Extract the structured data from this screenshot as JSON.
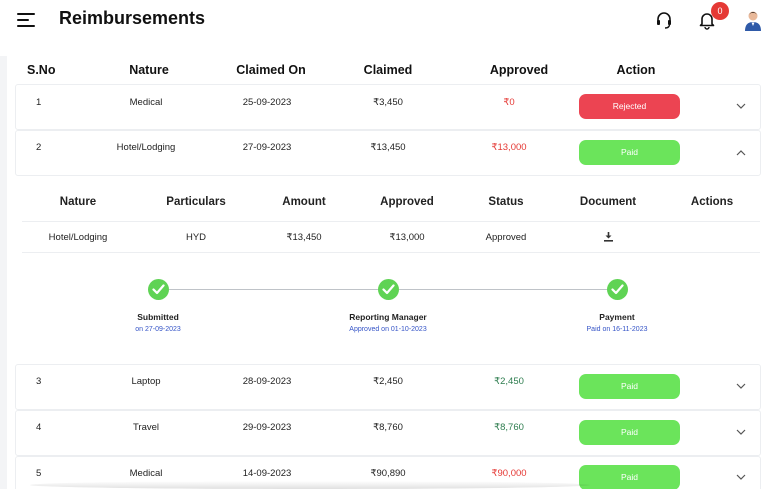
{
  "header": {
    "title": "Reimbursements",
    "notification_count": "0",
    "icons": [
      "menu-icon",
      "headset-icon",
      "bell-icon",
      "user-avatar"
    ]
  },
  "table": {
    "columns": [
      "S.No",
      "Nature",
      "Claimed On",
      "Claimed",
      "Approved",
      "Action"
    ],
    "rows": [
      {
        "sno": "1",
        "nature": "Medical",
        "claimed_on": "25-09-2023",
        "claimed": "₹3,450",
        "approved": "₹0",
        "approved_color": "#e53935",
        "action": "Rejected",
        "action_color": "#ec4452",
        "expanded": false
      },
      {
        "sno": "2",
        "nature": "Hotel/Lodging",
        "claimed_on": "27-09-2023",
        "claimed": "₹13,450",
        "approved": "₹13,000",
        "approved_color": "#e53935",
        "action": "Paid",
        "action_color": "#6be45b",
        "expanded": true
      },
      {
        "sno": "3",
        "nature": "Laptop",
        "claimed_on": "28-09-2023",
        "claimed": "₹2,450",
        "approved": "₹2,450",
        "approved_color": "#2e7d4f",
        "action": "Paid",
        "action_color": "#6be45b",
        "expanded": false
      },
      {
        "sno": "4",
        "nature": "Travel",
        "claimed_on": "29-09-2023",
        "claimed": "₹8,760",
        "approved": "₹8,760",
        "approved_color": "#2e7d4f",
        "action": "Paid",
        "action_color": "#6be45b",
        "expanded": false
      },
      {
        "sno": "5",
        "nature": "Medical",
        "claimed_on": "14-09-2023",
        "claimed": "₹90,890",
        "approved": "₹90,000",
        "approved_color": "#e53935",
        "action": "Paid",
        "action_color": "#6be45b",
        "expanded": false
      }
    ]
  },
  "detail": {
    "columns": [
      "Nature",
      "Particulars",
      "Amount",
      "Approved",
      "Status",
      "Document",
      "Actions"
    ],
    "row": {
      "nature": "Hotel/Lodging",
      "particulars": "HYD",
      "amount": "₹13,450",
      "approved": "₹13,000",
      "status": "Approved",
      "document_icon": "download-icon"
    },
    "steps": [
      {
        "title": "Submitted",
        "sub": "on 27-09-2023"
      },
      {
        "title": "Reporting Manager",
        "sub": "Approved on 01-10-2023"
      },
      {
        "title": "Payment",
        "sub": "Paid on 16-11-2023"
      }
    ],
    "step_color": "#5fd354"
  }
}
